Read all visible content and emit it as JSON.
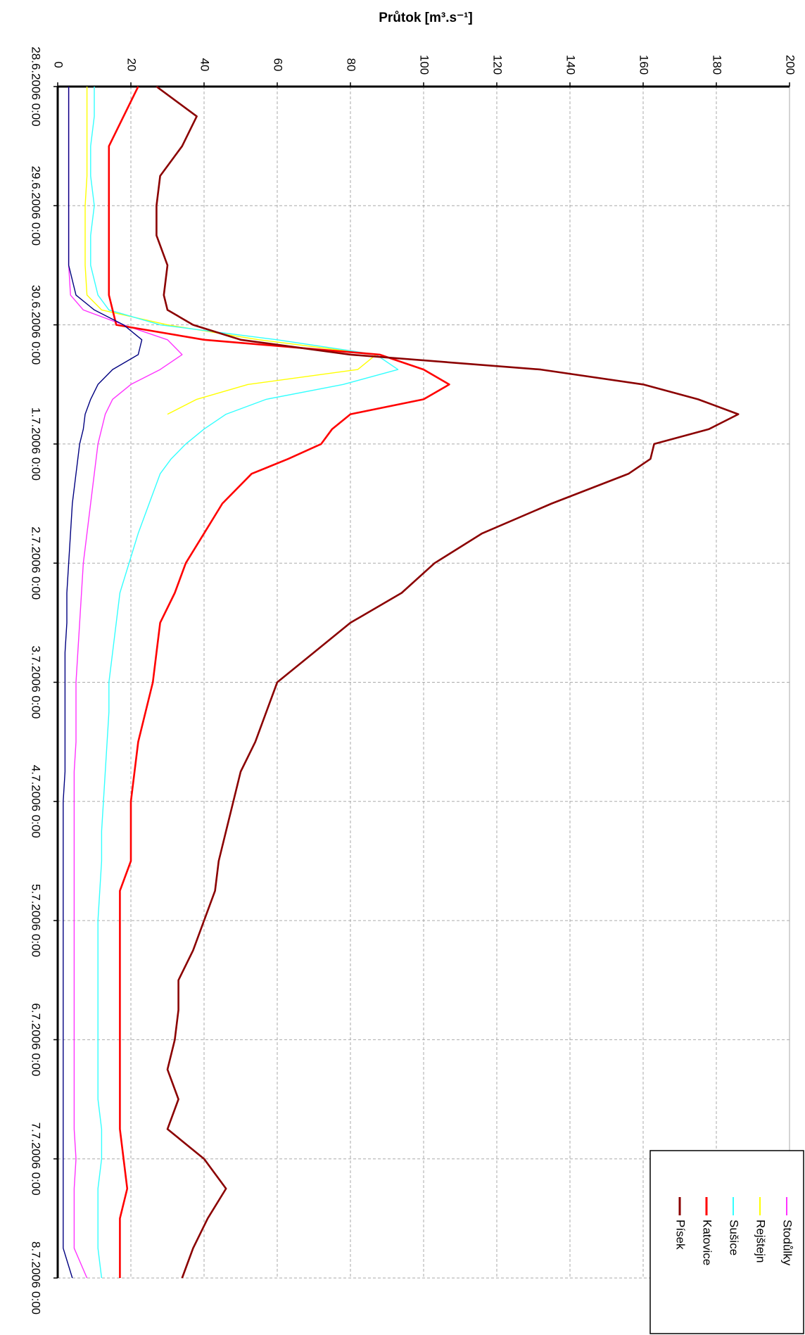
{
  "chart_data": {
    "type": "line",
    "title": "Průtok [m³.s⁻¹]",
    "x": [
      0,
      0.25,
      0.5,
      0.75,
      1,
      1.25,
      1.5,
      1.75,
      1.875,
      2,
      2.125,
      2.25,
      2.375,
      2.5,
      2.625,
      2.75,
      2.875,
      3,
      3.125,
      3.25,
      3.5,
      3.75,
      4,
      4.25,
      4.5,
      4.75,
      5,
      5.25,
      5.5,
      5.75,
      6,
      6.25,
      6.5,
      6.75,
      7,
      7.25,
      7.5,
      7.75,
      8,
      8.25,
      8.5,
      8.75,
      9,
      9.25,
      9.5,
      9.75,
      10
    ],
    "xlim": [
      0,
      10
    ],
    "xticks": [
      {
        "value": 0,
        "label": "28.6.2006 0:00"
      },
      {
        "value": 1,
        "label": "29.6.2006 0:00"
      },
      {
        "value": 2,
        "label": "30.6.2006 0:00"
      },
      {
        "value": 3,
        "label": "1.7.2006 0:00"
      },
      {
        "value": 4,
        "label": "2.7.2006 0:00"
      },
      {
        "value": 5,
        "label": "3.7.2006 0:00"
      },
      {
        "value": 6,
        "label": "4.7.2006 0:00"
      },
      {
        "value": 7,
        "label": "5.7.2006 0:00"
      },
      {
        "value": 8,
        "label": "6.7.2006 0:00"
      },
      {
        "value": 9,
        "label": "7.7.2006 0:00"
      },
      {
        "value": 10,
        "label": "8.7.2006 0:00"
      }
    ],
    "ylim": [
      0,
      200
    ],
    "yticks": [
      0,
      20,
      40,
      60,
      80,
      100,
      120,
      140,
      160,
      180,
      200
    ],
    "grid": true,
    "legend": "bottom-right",
    "series": [
      {
        "name": "Stodůlky",
        "color": "#ff33ff",
        "values": [
          3,
          3,
          3,
          3,
          3,
          3,
          3,
          3.5,
          7,
          18,
          30,
          34,
          28,
          20,
          15,
          13,
          12,
          11,
          10.5,
          10,
          9,
          8,
          7,
          6.5,
          6,
          5.5,
          5,
          5,
          5,
          4.5,
          4.5,
          4.5,
          4.5,
          4.5,
          4.5,
          4.5,
          4.5,
          4.5,
          4.5,
          4.5,
          4.5,
          4.5,
          5,
          4.5,
          4.5,
          4.5,
          8
        ]
      },
      {
        "name": "Rejštejn",
        "color": "#ffff00",
        "values": [
          8,
          8,
          8,
          8,
          7.5,
          7.5,
          7.5,
          8,
          12,
          30,
          55,
          87,
          82,
          52,
          38,
          30,
          null,
          null,
          null,
          null,
          null,
          null,
          null,
          null,
          null,
          null,
          null,
          null,
          null,
          null,
          null,
          null,
          null,
          null,
          null,
          null,
          null,
          null,
          null,
          null,
          null,
          null,
          null,
          null,
          null,
          null,
          null
        ]
      },
      {
        "name": "Sušice",
        "color": "#33ffff",
        "values": [
          10,
          10,
          9,
          9,
          10,
          9,
          9,
          11,
          14,
          28,
          60,
          87,
          93,
          78,
          57,
          46,
          40,
          35,
          31,
          28,
          25,
          22,
          19.5,
          17,
          16,
          15,
          14,
          14,
          13.5,
          13,
          12.5,
          12,
          12,
          11.5,
          11,
          11,
          11,
          11,
          11,
          11,
          11,
          12,
          12,
          11,
          11,
          11,
          12
        ]
      },
      {
        "name": "Katovice",
        "color": "#ff0000",
        "values": [
          22,
          18,
          14,
          14,
          14,
          14,
          14,
          14,
          15,
          16,
          40,
          88,
          100,
          107,
          100,
          80,
          75,
          72,
          63,
          53,
          45,
          40,
          35,
          32,
          28,
          27,
          26,
          24,
          22,
          21,
          20,
          20,
          20,
          17,
          17,
          17,
          17,
          17,
          17,
          17,
          17,
          17,
          18,
          19,
          17,
          17,
          17
        ]
      },
      {
        "name": "Písek",
        "color": "#8b0000",
        "values": [
          27,
          38,
          34,
          28,
          27,
          27,
          30,
          29,
          30,
          37,
          50,
          80,
          132,
          160,
          175,
          186,
          178,
          163,
          162,
          156,
          135,
          116,
          103,
          94,
          80,
          70,
          60,
          57,
          54,
          50,
          48,
          46,
          44,
          43,
          40,
          37,
          33,
          33,
          32,
          30,
          33,
          30,
          40,
          46,
          41,
          37,
          34
        ]
      },
      {
        "color": "#000080",
        "values": [
          3,
          3,
          3,
          3,
          3,
          3,
          3,
          5,
          10,
          18,
          23,
          22,
          15,
          11,
          9,
          7.5,
          7,
          6,
          5.5,
          5,
          4,
          3.5,
          3,
          2.5,
          2.5,
          2,
          2,
          2,
          2,
          2,
          1.5,
          1.5,
          1.5,
          1.5,
          1.5,
          1.5,
          1.5,
          1.5,
          1.5,
          1.5,
          1.5,
          1.5,
          1.5,
          1.5,
          1.5,
          1.5,
          4
        ]
      }
    ]
  }
}
